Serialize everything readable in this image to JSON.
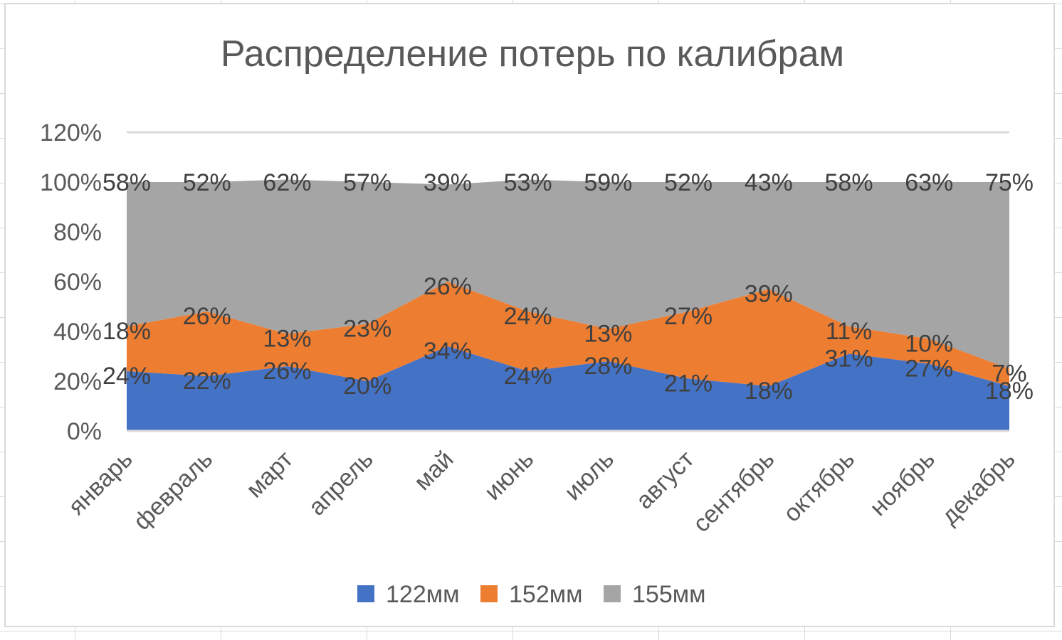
{
  "chart_data": {
    "type": "area",
    "stacked": "percent",
    "title": "Распределение потерь по калибрам",
    "categories": [
      "январь",
      "февраль",
      "март",
      "апрель",
      "май",
      "июнь",
      "июль",
      "август",
      "сентябрь",
      "октябрь",
      "ноябрь",
      "декабрь"
    ],
    "series": [
      {
        "name": "122мм",
        "color": "#4472C4",
        "values": [
          24,
          22,
          26,
          20,
          34,
          24,
          28,
          21,
          18,
          31,
          27,
          18
        ],
        "labels": [
          "24%",
          "22%",
          "26%",
          "20%",
          "34%",
          "24%",
          "28%",
          "21%",
          "18%",
          "31%",
          "27%",
          "18%"
        ]
      },
      {
        "name": "152мм",
        "color": "#ED7D31",
        "values": [
          18,
          26,
          13,
          23,
          26,
          24,
          13,
          27,
          39,
          11,
          10,
          7
        ],
        "labels": [
          "18%",
          "26%",
          "13%",
          "23%",
          "26%",
          "24%",
          "13%",
          "27%",
          "39%",
          "11%",
          "10%",
          "7%"
        ]
      },
      {
        "name": "155мм",
        "color": "#A5A5A5",
        "values": [
          58,
          52,
          62,
          57,
          39,
          53,
          59,
          52,
          43,
          58,
          63,
          75
        ],
        "labels": [
          "58%",
          "52%",
          "62%",
          "57%",
          "39%",
          "53%",
          "59%",
          "52%",
          "43%",
          "58%",
          "63%",
          "75%"
        ]
      }
    ],
    "y_ticks": [
      "0%",
      "20%",
      "40%",
      "60%",
      "80%",
      "100%",
      "120%"
    ],
    "ylim": [
      0,
      1.2
    ],
    "grid": true,
    "legend": "bottom"
  }
}
